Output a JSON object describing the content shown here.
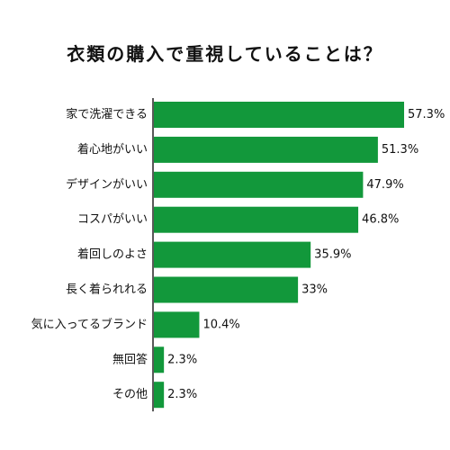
{
  "chart_data": {
    "type": "bar",
    "orientation": "horizontal",
    "title": "衣類の購入で重視していることは？",
    "categories": [
      "家で洗濯できる",
      "着心地がいい",
      "デザインがいい",
      "コスパがいい",
      "着回しのよさ",
      "長く着られれる",
      "気に入ってるブランド",
      "無回答",
      "その他"
    ],
    "values": [
      57.3,
      51.3,
      47.9,
      46.8,
      35.9,
      33,
      10.4,
      2.3,
      2.3
    ],
    "value_labels": [
      "57.3%",
      "51.3%",
      "47.9%",
      "46.8%",
      "35.9%",
      "33%",
      "10.4%",
      "2.3%",
      "2.3%"
    ],
    "unit": "%",
    "xlim": [
      0,
      60
    ],
    "grid": false,
    "colors": {
      "bar": "#12983b",
      "axis": "#222222",
      "text": "#111111"
    }
  }
}
